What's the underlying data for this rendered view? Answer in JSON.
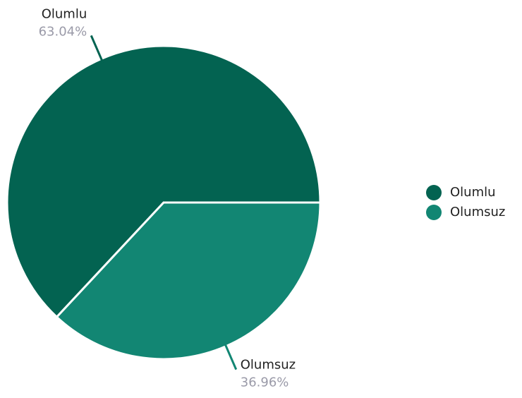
{
  "chart_data": {
    "type": "pie",
    "categories": [
      "Olumlu",
      "Olumsuz"
    ],
    "values": [
      63.04,
      36.96
    ],
    "value_labels": [
      "63.04%",
      "36.96%"
    ],
    "colors": [
      "#036351",
      "#128673"
    ],
    "legend": "right"
  }
}
